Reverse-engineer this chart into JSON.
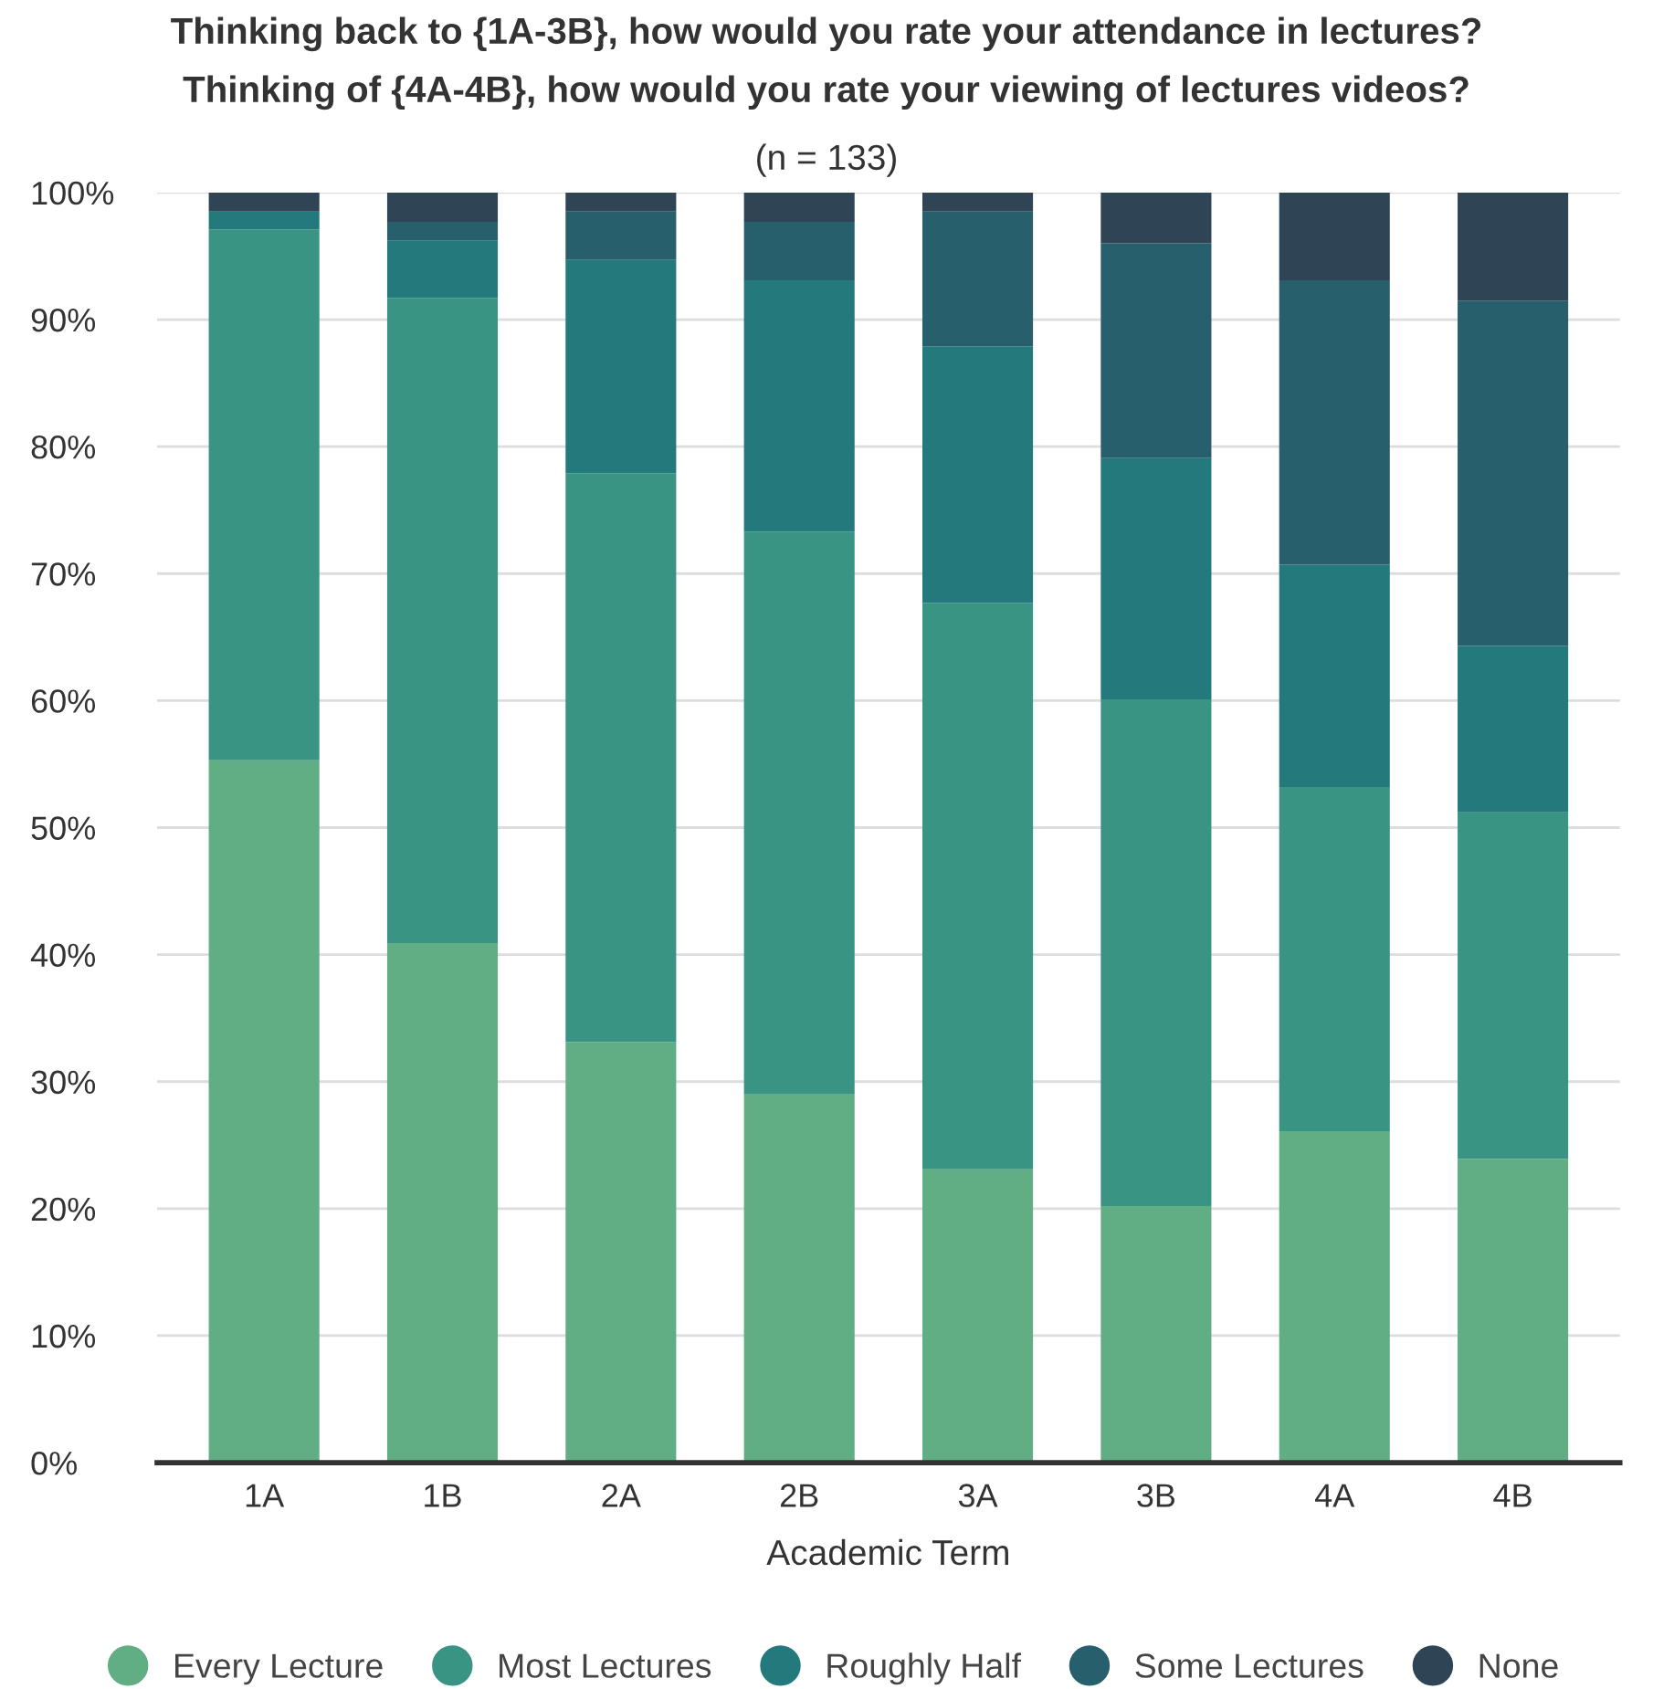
{
  "chart_data": {
    "type": "bar",
    "stacked": true,
    "title": "Thinking back to {1A-3B}, how would you rate your attendance in lectures?\nThinking of {4A-4B}, how would you rate your viewing of lectures videos?",
    "subtitle": "(n = 133)",
    "xlabel": "Academic Term",
    "categories": [
      "1A",
      "1B",
      "2A",
      "2B",
      "3A",
      "3B",
      "4A",
      "4B"
    ],
    "series": [
      {
        "name": "Every Lecture",
        "color": "#62ae84",
        "values": [
          55.3,
          40.9,
          33.1,
          29.0,
          23.1,
          20.2,
          26.1,
          23.9
        ]
      },
      {
        "name": "Most Lectures",
        "color": "#3a9484",
        "values": [
          41.8,
          50.8,
          44.8,
          44.3,
          44.6,
          39.9,
          27.1,
          27.3
        ]
      },
      {
        "name": "Roughly Half",
        "color": "#24797c",
        "values": [
          1.4,
          4.5,
          16.8,
          19.8,
          20.2,
          19.0,
          17.5,
          13.1
        ]
      },
      {
        "name": "Some Lectures",
        "color": "#275f6d",
        "values": [
          0,
          1.5,
          3.8,
          4.6,
          10.6,
          16.9,
          22.4,
          27.2
        ]
      },
      {
        "name": "None",
        "color": "#2f4555",
        "values": [
          1.5,
          2.3,
          1.5,
          2.3,
          1.5,
          4.0,
          6.9,
          8.5
        ]
      }
    ],
    "ylim": [
      0,
      100
    ],
    "yticks": [
      {
        "value": 0,
        "label": "0%"
      },
      {
        "value": 10,
        "label": "10%"
      },
      {
        "value": 20,
        "label": "20%"
      },
      {
        "value": 30,
        "label": "30%"
      },
      {
        "value": 40,
        "label": "40%"
      },
      {
        "value": 50,
        "label": "50%"
      },
      {
        "value": 60,
        "label": "60%"
      },
      {
        "value": 70,
        "label": "70%"
      },
      {
        "value": 80,
        "label": "80%"
      },
      {
        "value": 90,
        "label": "90%"
      },
      {
        "value": 100,
        "label": "100%"
      }
    ],
    "grid": "y",
    "legend": "bottom",
    "marker": "circle"
  }
}
